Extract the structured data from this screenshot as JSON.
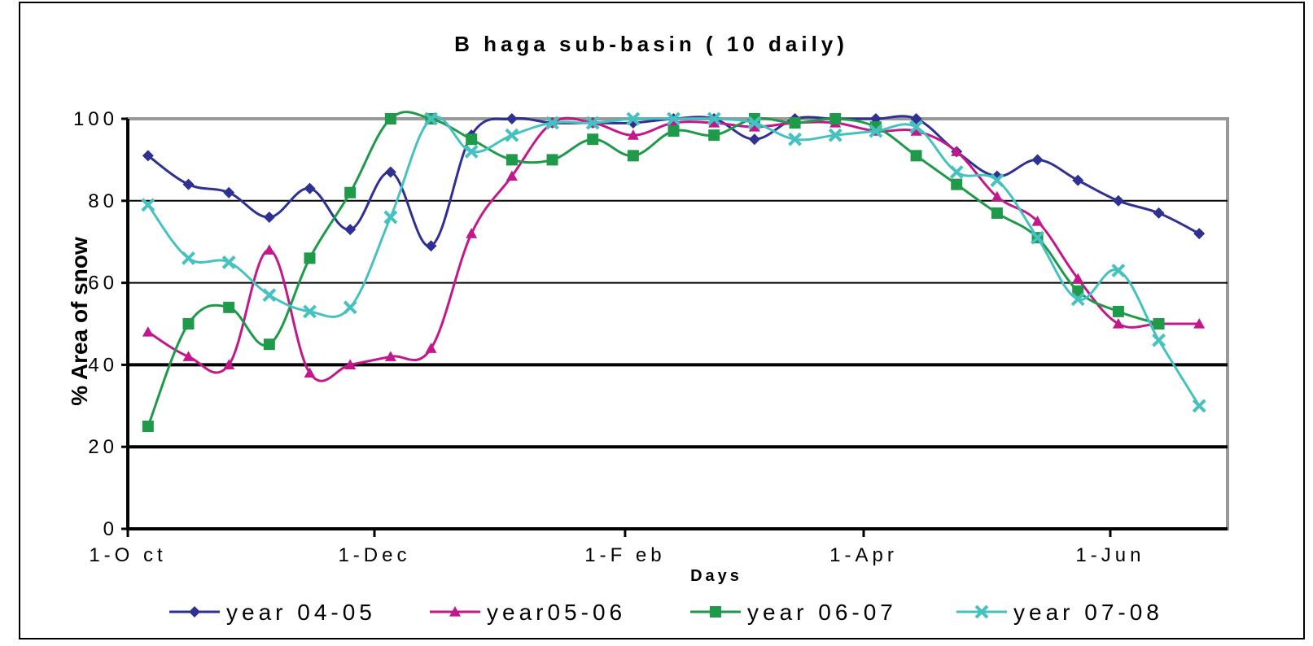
{
  "chart_data": {
    "type": "line",
    "title": "B haga sub-basin ( 10 daily)",
    "xlabel": "Days",
    "ylabel": "% Area of snow",
    "ylim": [
      0,
      100
    ],
    "yticks": [
      0,
      20,
      40,
      60,
      80,
      100
    ],
    "xticks": [
      {
        "label": "1-O ct",
        "x": 0
      },
      {
        "label": "1-Dec",
        "x": 61
      },
      {
        "label": "1-F eb",
        "x": 123
      },
      {
        "label": "1-Apr",
        "x": 182
      },
      {
        "label": "1-Jun",
        "x": 243
      }
    ],
    "xlim": [
      0,
      272
    ],
    "grid": true,
    "legend_position": "bottom",
    "series": [
      {
        "name": "year 04-05",
        "color": "#2e3192",
        "marker": "diamond",
        "x": [
          5,
          15,
          25,
          35,
          45,
          55,
          65,
          75,
          85,
          95,
          105,
          115,
          125,
          135,
          145,
          155,
          165,
          175,
          185,
          195,
          205,
          215,
          225,
          235,
          245,
          255,
          265
        ],
        "y": [
          91,
          84,
          82,
          76,
          83,
          73,
          87,
          69,
          96,
          100,
          99,
          99,
          99,
          100,
          100,
          95,
          100,
          100,
          100,
          100,
          92,
          86,
          90,
          85,
          80,
          77,
          72
        ]
      },
      {
        "name": "year05-06",
        "color": "#c2188b",
        "marker": "triangle",
        "x": [
          5,
          15,
          25,
          35,
          45,
          55,
          65,
          75,
          85,
          95,
          105,
          115,
          125,
          135,
          145,
          155,
          165,
          175,
          185,
          195,
          205,
          215,
          225,
          235,
          245,
          255,
          265
        ],
        "y": [
          48,
          42,
          40,
          68,
          38,
          40,
          42,
          44,
          72,
          86,
          99,
          99,
          96,
          99,
          99,
          98,
          99,
          99,
          97,
          97,
          92,
          81,
          75,
          61,
          50,
          50,
          50
        ]
      },
      {
        "name": "year 06-07",
        "color": "#1f9a4a",
        "marker": "square",
        "x": [
          5,
          15,
          25,
          35,
          45,
          55,
          65,
          75,
          85,
          95,
          105,
          115,
          125,
          135,
          145,
          155,
          165,
          175,
          185,
          195,
          205,
          215,
          225,
          235,
          245,
          255
        ],
        "y": [
          25,
          50,
          54,
          45,
          66,
          82,
          100,
          100,
          95,
          90,
          90,
          95,
          91,
          97,
          96,
          100,
          99,
          100,
          98,
          91,
          84,
          77,
          71,
          58,
          53,
          50
        ]
      },
      {
        "name": "year 07-08",
        "color": "#45c1c0",
        "marker": "x",
        "x": [
          5,
          15,
          25,
          35,
          45,
          55,
          65,
          75,
          85,
          95,
          105,
          115,
          125,
          135,
          145,
          155,
          165,
          175,
          185,
          195,
          205,
          215,
          225,
          235,
          245,
          255,
          265
        ],
        "y": [
          79,
          66,
          65,
          57,
          53,
          54,
          76,
          100,
          92,
          96,
          99,
          99,
          100,
          100,
          100,
          99,
          95,
          96,
          97,
          98,
          87,
          85,
          71,
          56,
          63,
          46,
          30
        ]
      }
    ]
  }
}
